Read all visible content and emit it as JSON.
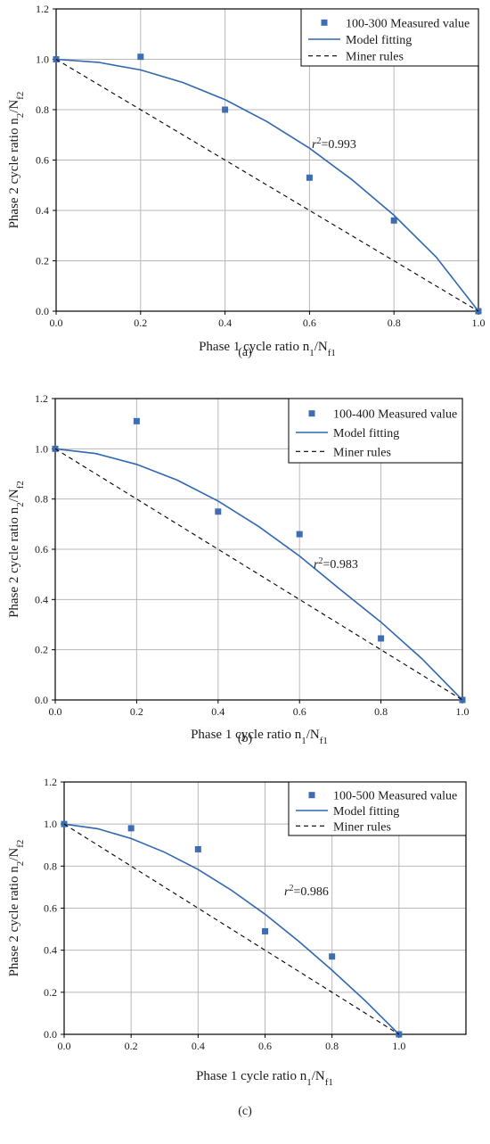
{
  "chart_data": [
    {
      "type": "scatter",
      "panel_label": "(a)",
      "xlabel": "Phase 1 cycle ratio n1/Nf1",
      "ylabel": "Phase 2 cycle ratio n2/Nf2",
      "xlim": [
        0,
        1
      ],
      "ylim": [
        0,
        1.2
      ],
      "x_ticks": [
        "0.0",
        "0.2",
        "0.4",
        "0.6",
        "0.8",
        "1.0"
      ],
      "y_ticks": [
        "0.0",
        "0.2",
        "0.4",
        "0.6",
        "0.8",
        "1.0",
        "1.2"
      ],
      "grid": true,
      "legend_placement": "top-right",
      "annotation": "r2=0.993",
      "series": [
        {
          "name": "100-300 Measured value",
          "kind": "points",
          "color": "#3e6db3",
          "x": [
            0,
            0.2,
            0.4,
            0.6,
            0.8,
            1.0
          ],
          "y": [
            1.0,
            1.01,
            0.8,
            0.53,
            0.36,
            0.0
          ]
        },
        {
          "name": "Model fitting",
          "kind": "curve",
          "color": "#2f67b0",
          "x": [
            0,
            0.1,
            0.2,
            0.3,
            0.4,
            0.5,
            0.6,
            0.7,
            0.8,
            0.9,
            1.0
          ],
          "y": [
            1.0,
            0.988,
            0.958,
            0.908,
            0.84,
            0.752,
            0.647,
            0.523,
            0.381,
            0.215,
            0.0
          ]
        },
        {
          "name": "Miner rules",
          "kind": "dashed",
          "color": "#000000",
          "x": [
            0,
            1
          ],
          "y": [
            1,
            0
          ]
        }
      ]
    },
    {
      "type": "scatter",
      "panel_label": "(b)",
      "xlabel": "Phase 1 cycle ratio n1/Nf1",
      "ylabel": "Phase 2 cycle ratio n2/Nf2",
      "xlim": [
        0,
        1
      ],
      "ylim": [
        0,
        1.2
      ],
      "x_ticks": [
        "0.0",
        "0.2",
        "0.4",
        "0.6",
        "0.8",
        "1.0"
      ],
      "y_ticks": [
        "0.0",
        "0.2",
        "0.4",
        "0.6",
        "0.8",
        "1.0",
        "1.2"
      ],
      "grid": true,
      "legend_placement": "top-right",
      "annotation": "r2=0.983",
      "series": [
        {
          "name": "100-400 Measured value",
          "kind": "points",
          "color": "#3e6db3",
          "x": [
            0,
            0.2,
            0.4,
            0.6,
            0.8,
            1.0
          ],
          "y": [
            1.0,
            1.11,
            0.75,
            0.66,
            0.245,
            0.0
          ]
        },
        {
          "name": "Model fitting",
          "kind": "curve",
          "color": "#2f67b0",
          "x": [
            0,
            0.1,
            0.2,
            0.3,
            0.4,
            0.5,
            0.6,
            0.7,
            0.8,
            0.9,
            1.0
          ],
          "y": [
            1.0,
            0.981,
            0.938,
            0.875,
            0.792,
            0.69,
            0.573,
            0.44,
            0.31,
            0.165,
            0.0
          ]
        },
        {
          "name": "Miner rules",
          "kind": "dashed",
          "color": "#000000",
          "x": [
            0,
            1
          ],
          "y": [
            1,
            0
          ]
        }
      ]
    },
    {
      "type": "scatter",
      "panel_label": "(c)",
      "xlabel": "Phase 1 cycle ratio n1/Nf1",
      "ylabel": "Phase 2 cycle ratio n2/Nf2",
      "xlim": [
        0,
        1.2
      ],
      "ylim": [
        0,
        1.2
      ],
      "x_ticks": [
        "0.0",
        "0.2",
        "0.4",
        "0.6",
        "0.8",
        "1.0"
      ],
      "y_ticks": [
        "0.0",
        "0.2",
        "0.4",
        "0.6",
        "0.8",
        "1.0",
        "1.2"
      ],
      "grid": true,
      "legend_placement": "top-right",
      "annotation": "r2=0.986",
      "series": [
        {
          "name": "100-500 Measured value",
          "kind": "points",
          "color": "#3e6db3",
          "x": [
            0,
            0.2,
            0.4,
            0.6,
            0.8,
            1.0
          ],
          "y": [
            1.0,
            0.98,
            0.88,
            0.49,
            0.37,
            0.0
          ]
        },
        {
          "name": "Model fitting",
          "kind": "curve",
          "color": "#2f67b0",
          "x": [
            0,
            0.1,
            0.2,
            0.3,
            0.4,
            0.5,
            0.6,
            0.7,
            0.8,
            0.9,
            1.0
          ],
          "y": [
            1.0,
            0.978,
            0.931,
            0.866,
            0.784,
            0.685,
            0.571,
            0.443,
            0.305,
            0.158,
            0.0
          ]
        },
        {
          "name": "Miner rules",
          "kind": "dashed",
          "color": "#000000",
          "x": [
            0,
            1
          ],
          "y": [
            1,
            0
          ]
        }
      ]
    }
  ]
}
